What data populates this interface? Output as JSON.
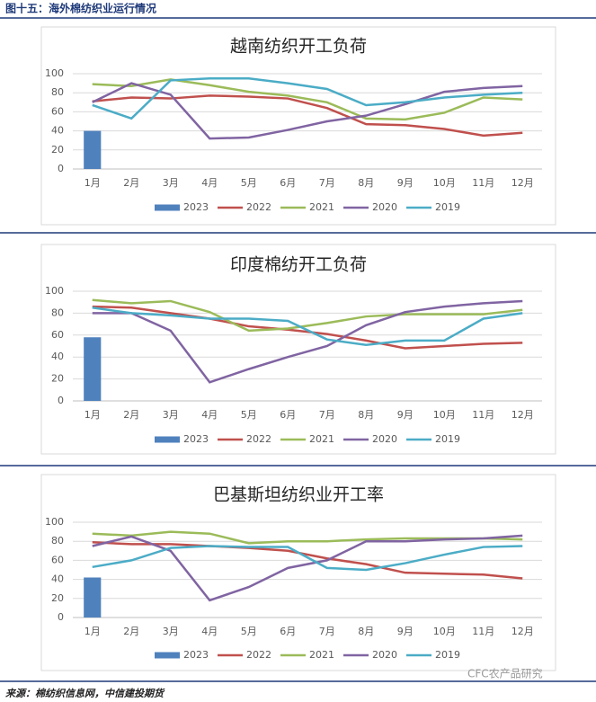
{
  "header": {
    "title": "图十五：海外棉纺织业运行情况"
  },
  "chart_data": [
    {
      "type": "combo",
      "title": "越南纺织开工负荷",
      "categories": [
        "1月",
        "2月",
        "3月",
        "4月",
        "5月",
        "6月",
        "7月",
        "8月",
        "9月",
        "10月",
        "11月",
        "12月"
      ],
      "ylim": [
        0,
        100
      ],
      "yticks": [
        0,
        20,
        40,
        60,
        80,
        100
      ],
      "grid": true,
      "legend": "bottom",
      "series": [
        {
          "name": "2023",
          "type": "bar",
          "color": "#4f81bd",
          "values": [
            40,
            null,
            null,
            null,
            null,
            null,
            null,
            null,
            null,
            null,
            null,
            null
          ]
        },
        {
          "name": "2022",
          "type": "line",
          "color": "#c0504d",
          "values": [
            71,
            75,
            74,
            77,
            76,
            74,
            64,
            47,
            46,
            42,
            35,
            38
          ]
        },
        {
          "name": "2021",
          "type": "line",
          "color": "#9bbb59",
          "values": [
            89,
            87,
            94,
            88,
            81,
            77,
            70,
            53,
            52,
            59,
            75,
            73
          ]
        },
        {
          "name": "2020",
          "type": "line",
          "color": "#8064a2",
          "values": [
            70,
            90,
            78,
            32,
            33,
            41,
            50,
            56,
            68,
            81,
            85,
            87
          ]
        },
        {
          "name": "2019",
          "type": "line",
          "color": "#4bacc6",
          "values": [
            67,
            53,
            93,
            95,
            95,
            90,
            84,
            67,
            70,
            75,
            78,
            80
          ]
        }
      ]
    },
    {
      "type": "combo",
      "title": "印度棉纺开工负荷",
      "categories": [
        "1月",
        "2月",
        "3月",
        "4月",
        "5月",
        "6月",
        "7月",
        "8月",
        "9月",
        "10月",
        "11月",
        "12月"
      ],
      "ylim": [
        0,
        100
      ],
      "yticks": [
        0,
        20,
        40,
        60,
        80,
        100
      ],
      "grid": true,
      "legend": "bottom",
      "series": [
        {
          "name": "2023",
          "type": "bar",
          "color": "#4f81bd",
          "values": [
            58,
            null,
            null,
            null,
            null,
            null,
            null,
            null,
            null,
            null,
            null,
            null
          ]
        },
        {
          "name": "2022",
          "type": "line",
          "color": "#c0504d",
          "values": [
            86,
            85,
            80,
            75,
            68,
            65,
            61,
            55,
            48,
            50,
            52,
            53
          ]
        },
        {
          "name": "2021",
          "type": "line",
          "color": "#9bbb59",
          "values": [
            92,
            89,
            91,
            81,
            64,
            66,
            71,
            77,
            79,
            79,
            79,
            83
          ]
        },
        {
          "name": "2020",
          "type": "line",
          "color": "#8064a2",
          "values": [
            80,
            80,
            64,
            17,
            29,
            40,
            50,
            69,
            81,
            86,
            89,
            91
          ]
        },
        {
          "name": "2019",
          "type": "line",
          "color": "#4bacc6",
          "values": [
            85,
            80,
            78,
            75,
            75,
            73,
            56,
            51,
            55,
            55,
            75,
            80
          ]
        }
      ]
    },
    {
      "type": "combo",
      "title": "巴基斯坦纺织业开工率",
      "categories": [
        "1月",
        "2月",
        "3月",
        "4月",
        "5月",
        "6月",
        "7月",
        "8月",
        "9月",
        "10月",
        "11月",
        "12月"
      ],
      "ylim": [
        0,
        100
      ],
      "yticks": [
        0,
        20,
        40,
        60,
        80,
        100
      ],
      "grid": true,
      "legend": "bottom",
      "series": [
        {
          "name": "2023",
          "type": "bar",
          "color": "#4f81bd",
          "values": [
            42,
            null,
            null,
            null,
            null,
            null,
            null,
            null,
            null,
            null,
            null,
            null
          ]
        },
        {
          "name": "2022",
          "type": "line",
          "color": "#c0504d",
          "values": [
            79,
            77,
            77,
            75,
            73,
            70,
            62,
            56,
            47,
            46,
            45,
            41
          ]
        },
        {
          "name": "2021",
          "type": "line",
          "color": "#9bbb59",
          "values": [
            88,
            86,
            90,
            88,
            78,
            80,
            80,
            82,
            83,
            83,
            83,
            82
          ]
        },
        {
          "name": "2020",
          "type": "line",
          "color": "#8064a2",
          "values": [
            75,
            85,
            70,
            18,
            32,
            52,
            60,
            80,
            80,
            82,
            83,
            86
          ]
        },
        {
          "name": "2019",
          "type": "line",
          "color": "#4bacc6",
          "values": [
            53,
            60,
            73,
            75,
            74,
            74,
            52,
            50,
            57,
            66,
            74,
            75
          ]
        }
      ]
    }
  ],
  "watermark": "CFC农产品研究",
  "source": "来源：棉纺织信息网，中信建投期货"
}
